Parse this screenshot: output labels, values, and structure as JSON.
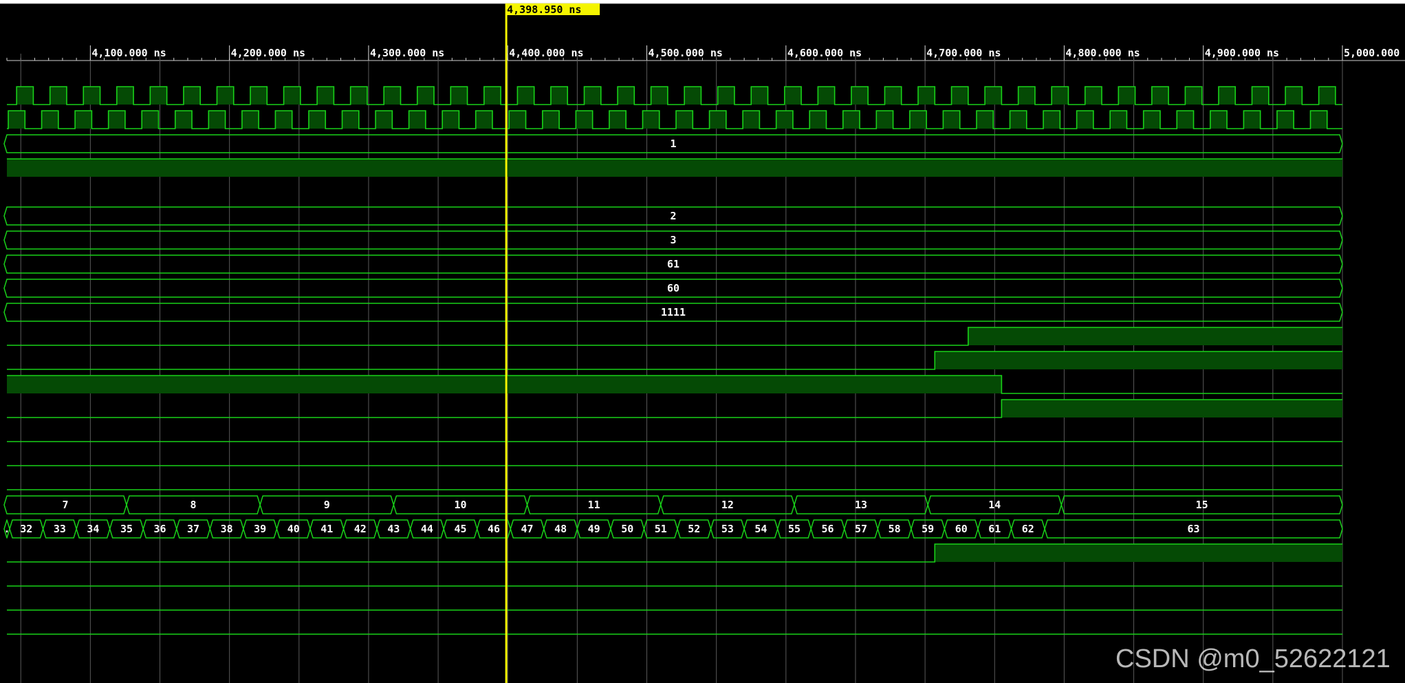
{
  "viewer": {
    "cursor_time_ns": 4398.95,
    "cursor_label": "4,398.950 ns",
    "time_start_ns": 4040,
    "time_end_ns": 5000,
    "ruler_ticks": [
      {
        "t": 4100,
        "label": "4,100.000 ns"
      },
      {
        "t": 4200,
        "label": "4,200.000 ns"
      },
      {
        "t": 4300,
        "label": "4,300.000 ns"
      },
      {
        "t": 4400,
        "label": "4,400.000 ns"
      },
      {
        "t": 4500,
        "label": "4,500.000 ns"
      },
      {
        "t": 4600,
        "label": "4,600.000 ns"
      },
      {
        "t": 4700,
        "label": "4,700.000 ns"
      },
      {
        "t": 4800,
        "label": "4,800.000 ns"
      },
      {
        "t": 4900,
        "label": "4,900.000 ns"
      },
      {
        "t": 5000,
        "label": "5,000.000 ns"
      }
    ]
  },
  "watermark": "CSDN @m0_52622121",
  "colors": {
    "background": "#000000",
    "trace": "#19d119",
    "fill": "#054a05",
    "grid": "#5a5a5a",
    "cursor": "#f4f400",
    "text": "#ffffff"
  },
  "signals": [
    {
      "kind": "clock",
      "period_ns": 24,
      "first_rise_ns": 4047
    },
    {
      "kind": "clock",
      "period_ns": 24,
      "first_rise_ns": 4041
    },
    {
      "kind": "bus",
      "segments": [
        {
          "from": 4035,
          "to": 5000,
          "label": "1"
        }
      ]
    },
    {
      "kind": "bit",
      "edges": [
        {
          "t": 4035,
          "v": 1
        }
      ]
    },
    {
      "kind": "empty"
    },
    {
      "kind": "bus",
      "segments": [
        {
          "from": 4035,
          "to": 5000,
          "label": "2"
        }
      ]
    },
    {
      "kind": "bus",
      "segments": [
        {
          "from": 4035,
          "to": 5000,
          "label": "3"
        }
      ]
    },
    {
      "kind": "bus",
      "segments": [
        {
          "from": 4035,
          "to": 5000,
          "label": "61"
        }
      ]
    },
    {
      "kind": "bus",
      "segments": [
        {
          "from": 4035,
          "to": 5000,
          "label": "60"
        }
      ]
    },
    {
      "kind": "bus",
      "segments": [
        {
          "from": 4035,
          "to": 5000,
          "label": "1111"
        }
      ]
    },
    {
      "kind": "bit",
      "edges": [
        {
          "t": 4035,
          "v": 0
        },
        {
          "t": 4731,
          "v": 1
        }
      ]
    },
    {
      "kind": "bit",
      "edges": [
        {
          "t": 4035,
          "v": 0
        },
        {
          "t": 4707,
          "v": 1
        }
      ]
    },
    {
      "kind": "bit",
      "edges": [
        {
          "t": 4035,
          "v": 1
        },
        {
          "t": 4755,
          "v": 0
        }
      ]
    },
    {
      "kind": "bit",
      "edges": [
        {
          "t": 4035,
          "v": 0
        },
        {
          "t": 4755,
          "v": 1
        }
      ]
    },
    {
      "kind": "bit",
      "edges": [
        {
          "t": 4035,
          "v": 0
        }
      ]
    },
    {
      "kind": "bit",
      "edges": [
        {
          "t": 4035,
          "v": 0
        }
      ]
    },
    {
      "kind": "bit",
      "edges": [
        {
          "t": 4035,
          "v": 0
        }
      ]
    },
    {
      "kind": "bus",
      "segments": [
        {
          "from": 4035,
          "to": 4126,
          "label": "7"
        },
        {
          "from": 4126,
          "to": 4222,
          "label": "8"
        },
        {
          "from": 4222,
          "to": 4318,
          "label": "9"
        },
        {
          "from": 4318,
          "to": 4414,
          "label": "10"
        },
        {
          "from": 4414,
          "to": 4510,
          "label": "11"
        },
        {
          "from": 4510,
          "to": 4606,
          "label": "12"
        },
        {
          "from": 4606,
          "to": 4702,
          "label": "13"
        },
        {
          "from": 4702,
          "to": 4798,
          "label": "14"
        },
        {
          "from": 4798,
          "to": 5000,
          "label": "15"
        }
      ]
    },
    {
      "kind": "bus",
      "segments": [
        {
          "from": 4035,
          "to": 4042,
          "label": "."
        },
        {
          "from": 4042,
          "to": 4066,
          "label": "32"
        },
        {
          "from": 4066,
          "to": 4090,
          "label": "33"
        },
        {
          "from": 4090,
          "to": 4114,
          "label": "34"
        },
        {
          "from": 4114,
          "to": 4138,
          "label": "35"
        },
        {
          "from": 4138,
          "to": 4162,
          "label": "36"
        },
        {
          "from": 4162,
          "to": 4186,
          "label": "37"
        },
        {
          "from": 4186,
          "to": 4210,
          "label": "38"
        },
        {
          "from": 4210,
          "to": 4234,
          "label": "39"
        },
        {
          "from": 4234,
          "to": 4258,
          "label": "40"
        },
        {
          "from": 4258,
          "to": 4282,
          "label": "41"
        },
        {
          "from": 4282,
          "to": 4306,
          "label": "42"
        },
        {
          "from": 4306,
          "to": 4330,
          "label": "43"
        },
        {
          "from": 4330,
          "to": 4354,
          "label": "44"
        },
        {
          "from": 4354,
          "to": 4378,
          "label": "45"
        },
        {
          "from": 4378,
          "to": 4402,
          "label": "46"
        },
        {
          "from": 4402,
          "to": 4426,
          "label": "47"
        },
        {
          "from": 4426,
          "to": 4450,
          "label": "48"
        },
        {
          "from": 4450,
          "to": 4474,
          "label": "49"
        },
        {
          "from": 4474,
          "to": 4498,
          "label": "50"
        },
        {
          "from": 4498,
          "to": 4522,
          "label": "51"
        },
        {
          "from": 4522,
          "to": 4546,
          "label": "52"
        },
        {
          "from": 4546,
          "to": 4570,
          "label": "53"
        },
        {
          "from": 4570,
          "to": 4594,
          "label": "54"
        },
        {
          "from": 4594,
          "to": 4618,
          "label": "55"
        },
        {
          "from": 4618,
          "to": 4642,
          "label": "56"
        },
        {
          "from": 4642,
          "to": 4666,
          "label": "57"
        },
        {
          "from": 4666,
          "to": 4690,
          "label": "58"
        },
        {
          "from": 4690,
          "to": 4714,
          "label": "59"
        },
        {
          "from": 4714,
          "to": 4738,
          "label": "60"
        },
        {
          "from": 4738,
          "to": 4762,
          "label": "61"
        },
        {
          "from": 4762,
          "to": 4786,
          "label": "62"
        },
        {
          "from": 4786,
          "to": 5000,
          "label": "63"
        }
      ]
    },
    {
      "kind": "bit",
      "edges": [
        {
          "t": 4035,
          "v": 0
        },
        {
          "t": 4707,
          "v": 1
        }
      ]
    },
    {
      "kind": "bit",
      "edges": [
        {
          "t": 4035,
          "v": 0
        }
      ]
    },
    {
      "kind": "bit",
      "edges": [
        {
          "t": 4035,
          "v": 0
        }
      ]
    },
    {
      "kind": "bit",
      "edges": [
        {
          "t": 4035,
          "v": 0
        }
      ]
    }
  ]
}
